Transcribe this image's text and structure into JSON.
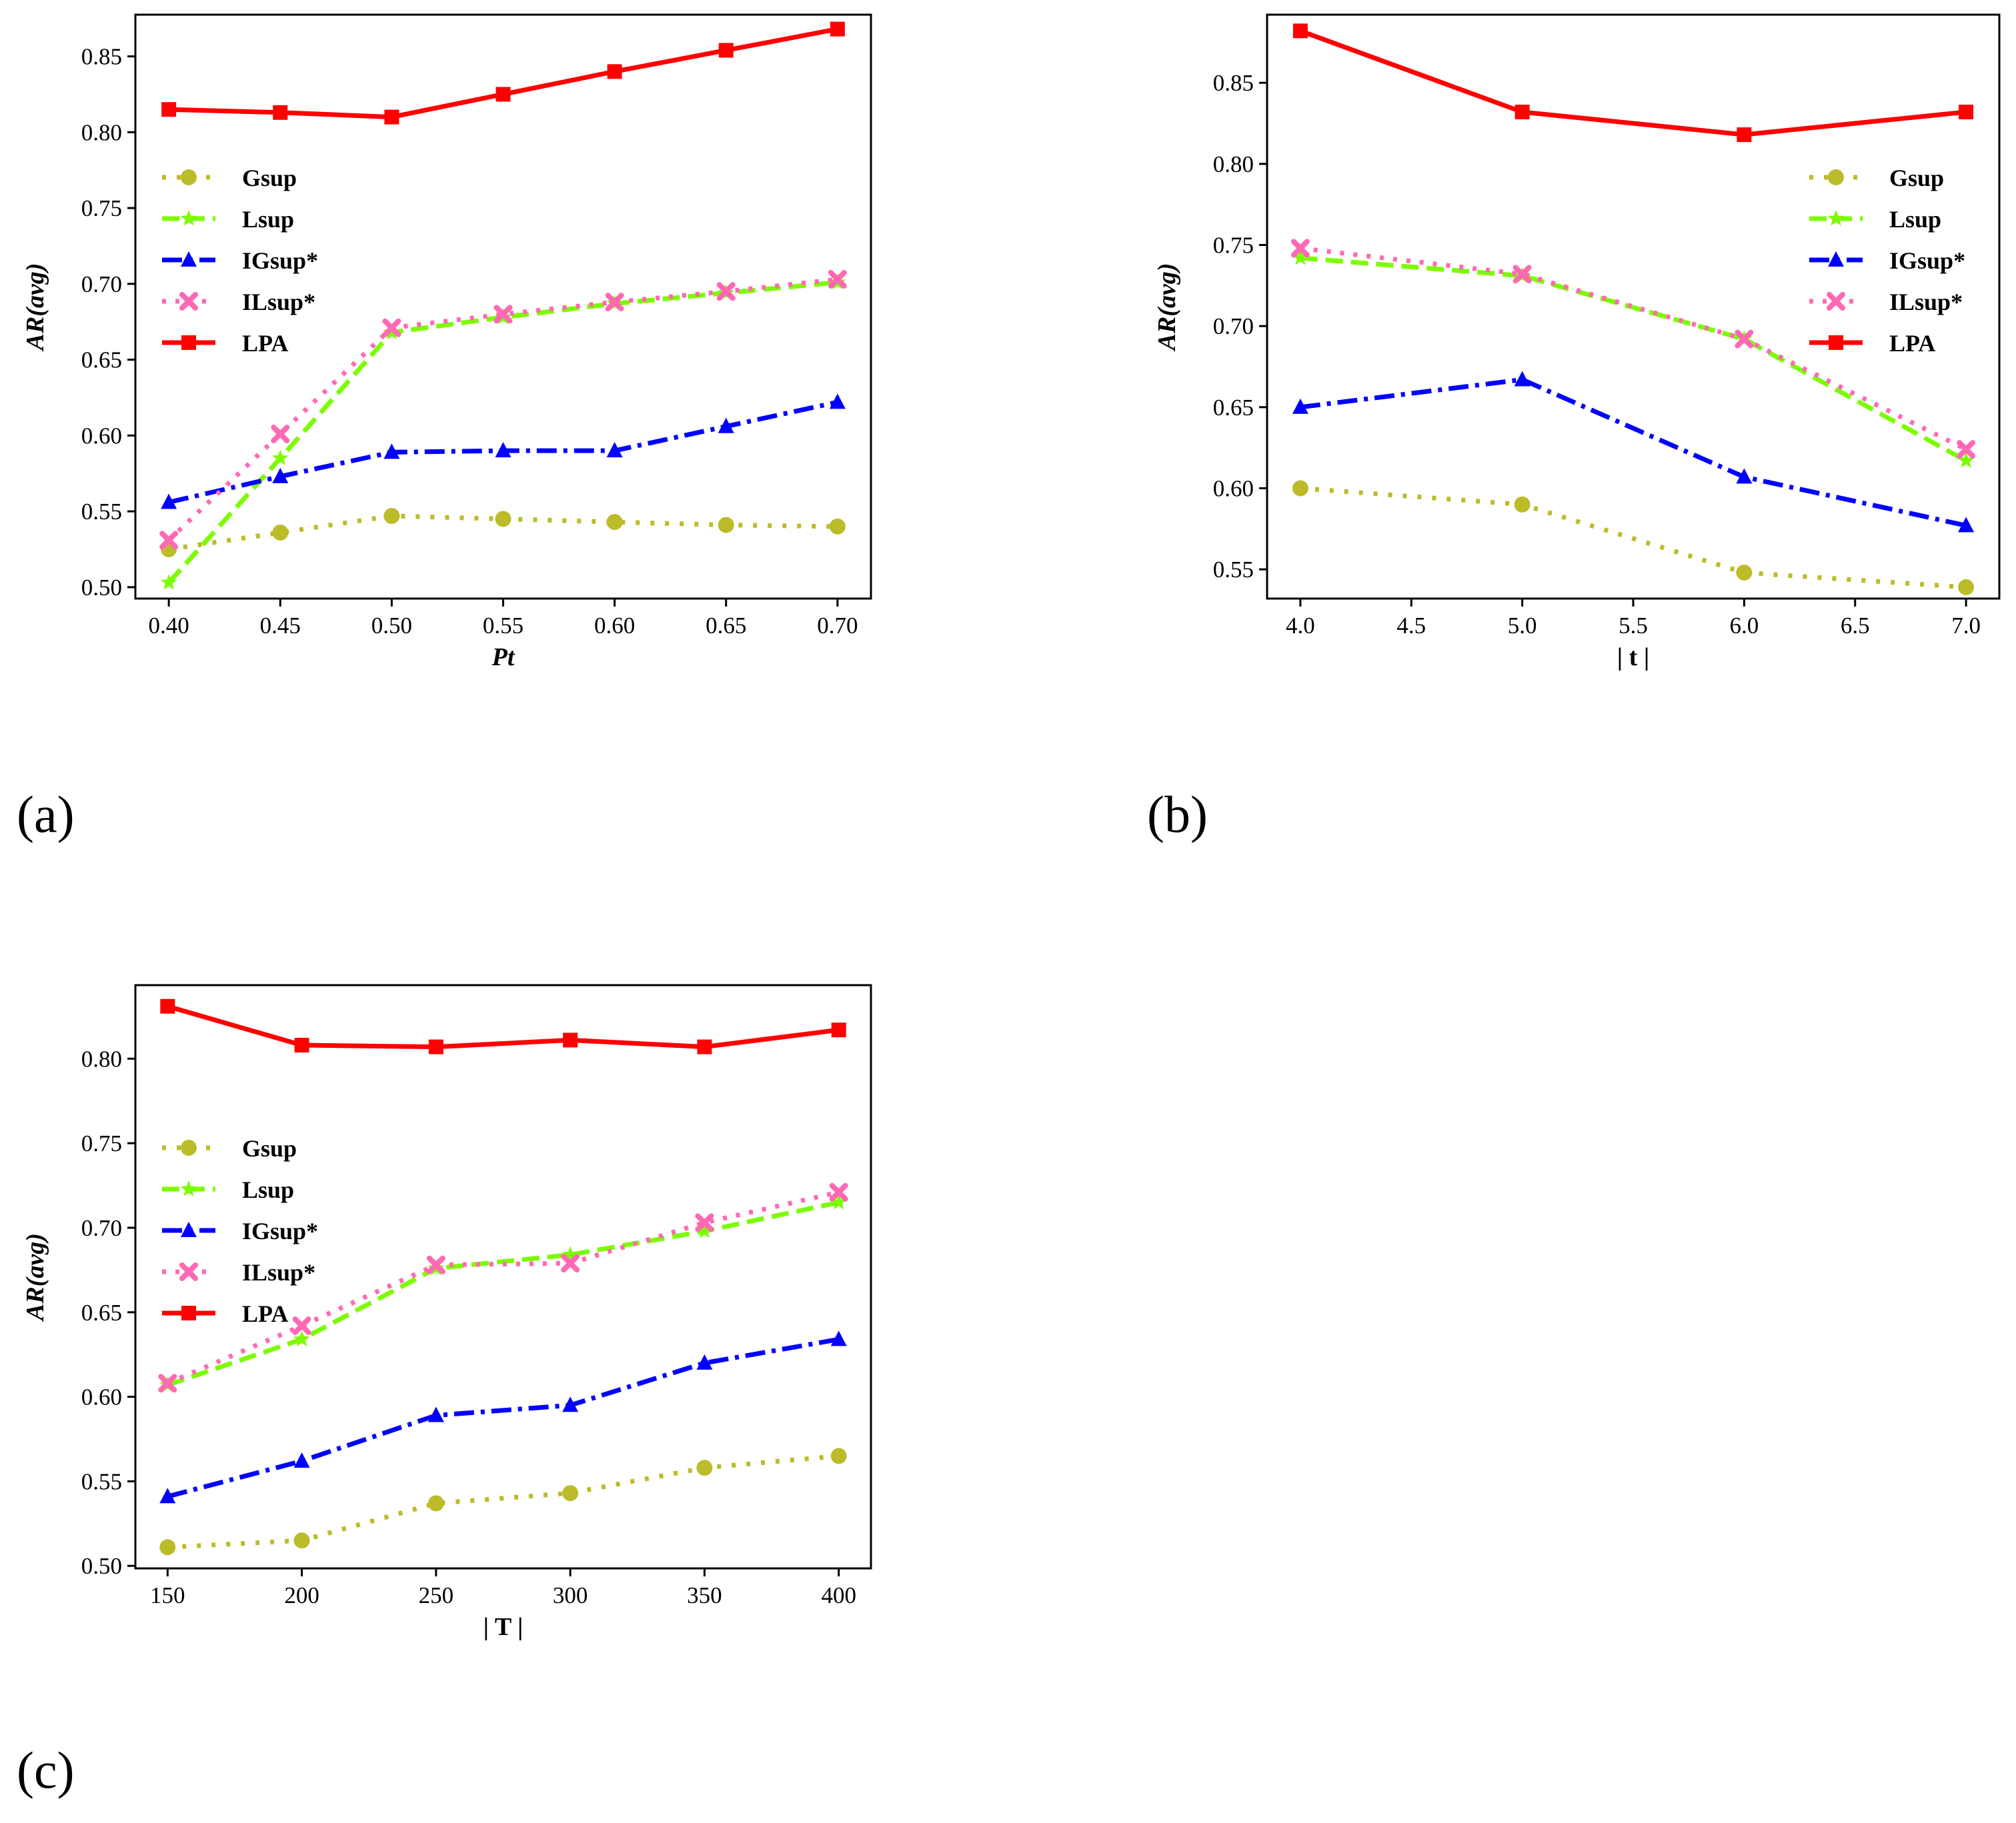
{
  "panel_labels": [
    "(a)",
    "(b)",
    "(c)"
  ],
  "styles": {
    "Gsup": {
      "color": "#bcbc2a",
      "dash": "6 16",
      "marker": "circle"
    },
    "Lsup": {
      "color": "#7cfc00",
      "dash": "26 12",
      "marker": "star"
    },
    "IGsup*": {
      "color": "#0000ff",
      "dash": "30 10 6 10",
      "marker": "triangle"
    },
    "ILsup*": {
      "color": "#ff69b4",
      "dash": "6 14",
      "marker": "x"
    },
    "LPA": {
      "color": "#ff0000",
      "dash": "",
      "marker": "square"
    }
  },
  "chart_data": [
    {
      "type": "line",
      "panel": "(a)",
      "xlabel": "Pt",
      "xlabel_italic": true,
      "ylabel": "AR(avg)",
      "x": [
        0.4,
        0.45,
        0.5,
        0.55,
        0.6,
        0.65,
        0.7
      ],
      "xlim": [
        0.385,
        0.715
      ],
      "ylim": [
        0.4925,
        0.8775
      ],
      "xticks": [
        "0.40",
        "0.45",
        "0.50",
        "0.55",
        "0.60",
        "0.65",
        "0.70"
      ],
      "xtick_values": [
        0.4,
        0.45,
        0.5,
        0.55,
        0.6,
        0.65,
        0.7
      ],
      "yticks": [
        "0.50",
        "0.55",
        "0.60",
        "0.65",
        "0.70",
        "0.75",
        "0.80",
        "0.85"
      ],
      "ytick_values": [
        0.5,
        0.55,
        0.6,
        0.65,
        0.7,
        0.75,
        0.8,
        0.85
      ],
      "legend_position": "center-left",
      "legend": [
        "Gsup",
        "Lsup",
        "IGsup*",
        "ILsup*",
        "LPA"
      ],
      "series": [
        {
          "name": "Gsup",
          "values": [
            0.525,
            0.536,
            0.547,
            0.545,
            0.543,
            0.541,
            0.54
          ]
        },
        {
          "name": "Lsup",
          "values": [
            0.503,
            0.585,
            0.668,
            0.678,
            0.687,
            0.694,
            0.701
          ]
        },
        {
          "name": "IGsup*",
          "values": [
            0.556,
            0.573,
            0.589,
            0.59,
            0.59,
            0.606,
            0.622
          ]
        },
        {
          "name": "ILsup*",
          "values": [
            0.531,
            0.601,
            0.671,
            0.68,
            0.688,
            0.695,
            0.703
          ]
        },
        {
          "name": "LPA",
          "values": [
            0.815,
            0.813,
            0.81,
            0.825,
            0.84,
            0.854,
            0.868
          ]
        }
      ]
    },
    {
      "type": "line",
      "panel": "(b)",
      "xlabel": "| t |",
      "xlabel_italic": false,
      "ylabel": "AR(avg)",
      "x": [
        4.0,
        5.0,
        6.0,
        7.0
      ],
      "xlim": [
        3.85,
        7.15
      ],
      "ylim": [
        0.532,
        0.892
      ],
      "xticks": [
        "4.0",
        "4.5",
        "5.0",
        "5.5",
        "6.0",
        "6.5",
        "7.0"
      ],
      "xtick_values": [
        4.0,
        4.5,
        5.0,
        5.5,
        6.0,
        6.5,
        7.0
      ],
      "yticks": [
        "0.55",
        "0.60",
        "0.65",
        "0.70",
        "0.75",
        "0.80",
        "0.85"
      ],
      "ytick_values": [
        0.55,
        0.6,
        0.65,
        0.7,
        0.75,
        0.8,
        0.85
      ],
      "legend_position": "center-right",
      "legend": [
        "Gsup",
        "Lsup",
        "IGsup*",
        "ILsup*",
        "LPA"
      ],
      "series": [
        {
          "name": "Gsup",
          "values": [
            0.6,
            0.59,
            0.548,
            0.539
          ]
        },
        {
          "name": "Lsup",
          "values": [
            0.742,
            0.731,
            0.692,
            0.617
          ]
        },
        {
          "name": "IGsup*",
          "values": [
            0.65,
            0.667,
            0.607,
            0.577
          ]
        },
        {
          "name": "ILsup*",
          "values": [
            0.748,
            0.732,
            0.692,
            0.624
          ]
        },
        {
          "name": "LPA",
          "values": [
            0.882,
            0.832,
            0.818,
            0.832
          ]
        }
      ]
    },
    {
      "type": "line",
      "panel": "(c)",
      "xlabel": "| T |",
      "xlabel_italic": false,
      "ylabel": "AR(avg)",
      "x": [
        150,
        200,
        250,
        300,
        350,
        400
      ],
      "xlim": [
        138,
        412
      ],
      "ylim": [
        0.4985,
        0.8435
      ],
      "xticks": [
        "150",
        "200",
        "250",
        "300",
        "350",
        "400"
      ],
      "xtick_values": [
        150,
        200,
        250,
        300,
        350,
        400
      ],
      "yticks": [
        "0.50",
        "0.55",
        "0.60",
        "0.65",
        "0.70",
        "0.75",
        "0.80"
      ],
      "ytick_values": [
        0.5,
        0.55,
        0.6,
        0.65,
        0.7,
        0.75,
        0.8
      ],
      "legend_position": "center-left",
      "legend": [
        "Gsup",
        "Lsup",
        "IGsup*",
        "ILsup*",
        "LPA"
      ],
      "series": [
        {
          "name": "Gsup",
          "values": [
            0.511,
            0.515,
            0.537,
            0.543,
            0.558,
            0.565
          ]
        },
        {
          "name": "Lsup",
          "values": [
            0.607,
            0.634,
            0.676,
            0.684,
            0.698,
            0.715
          ]
        },
        {
          "name": "IGsup*",
          "values": [
            0.541,
            0.562,
            0.589,
            0.595,
            0.62,
            0.634
          ]
        },
        {
          "name": "ILsup*",
          "values": [
            0.608,
            0.642,
            0.678,
            0.679,
            0.703,
            0.721
          ]
        },
        {
          "name": "LPA",
          "values": [
            0.831,
            0.808,
            0.807,
            0.811,
            0.807,
            0.817
          ]
        }
      ]
    }
  ]
}
